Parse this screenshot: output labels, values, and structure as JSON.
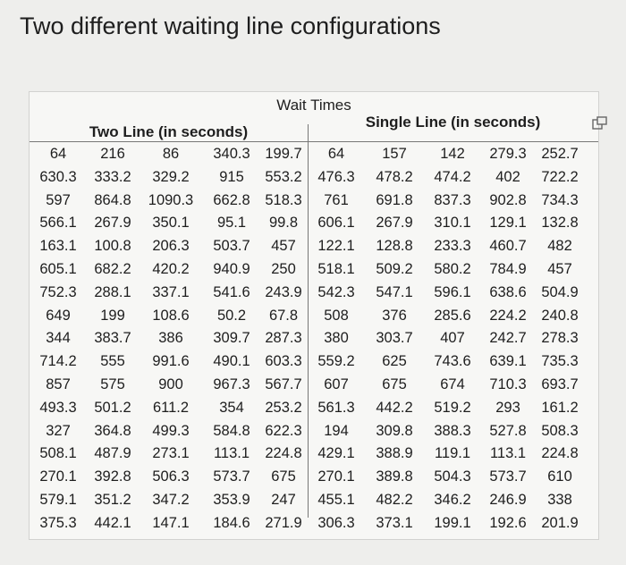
{
  "title": "Two different waiting line configurations",
  "table": {
    "caption": "Wait Times",
    "groups": [
      "Two Line (in seconds)",
      "Single Line (in seconds)"
    ],
    "rows": [
      [
        64,
        216,
        86,
        340.3,
        199.7,
        64,
        157,
        142,
        279.3,
        252.7
      ],
      [
        630.3,
        333.2,
        329.2,
        915,
        553.2,
        476.3,
        478.2,
        474.2,
        402,
        722.2
      ],
      [
        597,
        864.8,
        1090.3,
        662.8,
        518.3,
        761,
        691.8,
        837.3,
        902.8,
        734.3
      ],
      [
        566.1,
        267.9,
        350.1,
        95.1,
        99.8,
        606.1,
        267.9,
        310.1,
        129.1,
        132.8
      ],
      [
        163.1,
        100.8,
        206.3,
        503.7,
        457,
        122.1,
        128.8,
        233.3,
        460.7,
        482
      ],
      [
        605.1,
        682.2,
        420.2,
        940.9,
        250,
        518.1,
        509.2,
        580.2,
        784.9,
        457
      ],
      [
        752.3,
        288.1,
        337.1,
        541.6,
        243.9,
        542.3,
        547.1,
        596.1,
        638.6,
        504.9
      ],
      [
        649,
        199,
        108.6,
        50.2,
        67.8,
        508,
        376,
        285.6,
        224.2,
        240.8
      ],
      [
        344,
        383.7,
        386,
        309.7,
        287.3,
        380,
        303.7,
        407,
        242.7,
        278.3
      ],
      [
        714.2,
        555,
        991.6,
        490.1,
        603.3,
        559.2,
        625,
        743.6,
        639.1,
        735.3
      ],
      [
        857,
        575,
        900,
        967.3,
        567.7,
        607,
        675,
        674,
        710.3,
        693.7
      ],
      [
        493.3,
        501.2,
        611.2,
        354,
        253.2,
        561.3,
        442.2,
        519.2,
        293,
        161.2
      ],
      [
        327,
        364.8,
        499.3,
        584.8,
        622.3,
        194,
        309.8,
        388.3,
        527.8,
        508.3
      ],
      [
        508.1,
        487.9,
        273.1,
        113.1,
        224.8,
        429.1,
        388.9,
        119.1,
        113.1,
        224.8
      ],
      [
        270.1,
        392.8,
        506.3,
        573.7,
        675,
        270.1,
        389.8,
        504.3,
        573.7,
        610
      ],
      [
        579.1,
        351.2,
        347.2,
        353.9,
        247,
        455.1,
        482.2,
        346.2,
        246.9,
        338
      ],
      [
        375.3,
        442.1,
        147.1,
        184.6,
        271.9,
        306.3,
        373.1,
        199.1,
        192.6,
        201.9
      ]
    ]
  }
}
